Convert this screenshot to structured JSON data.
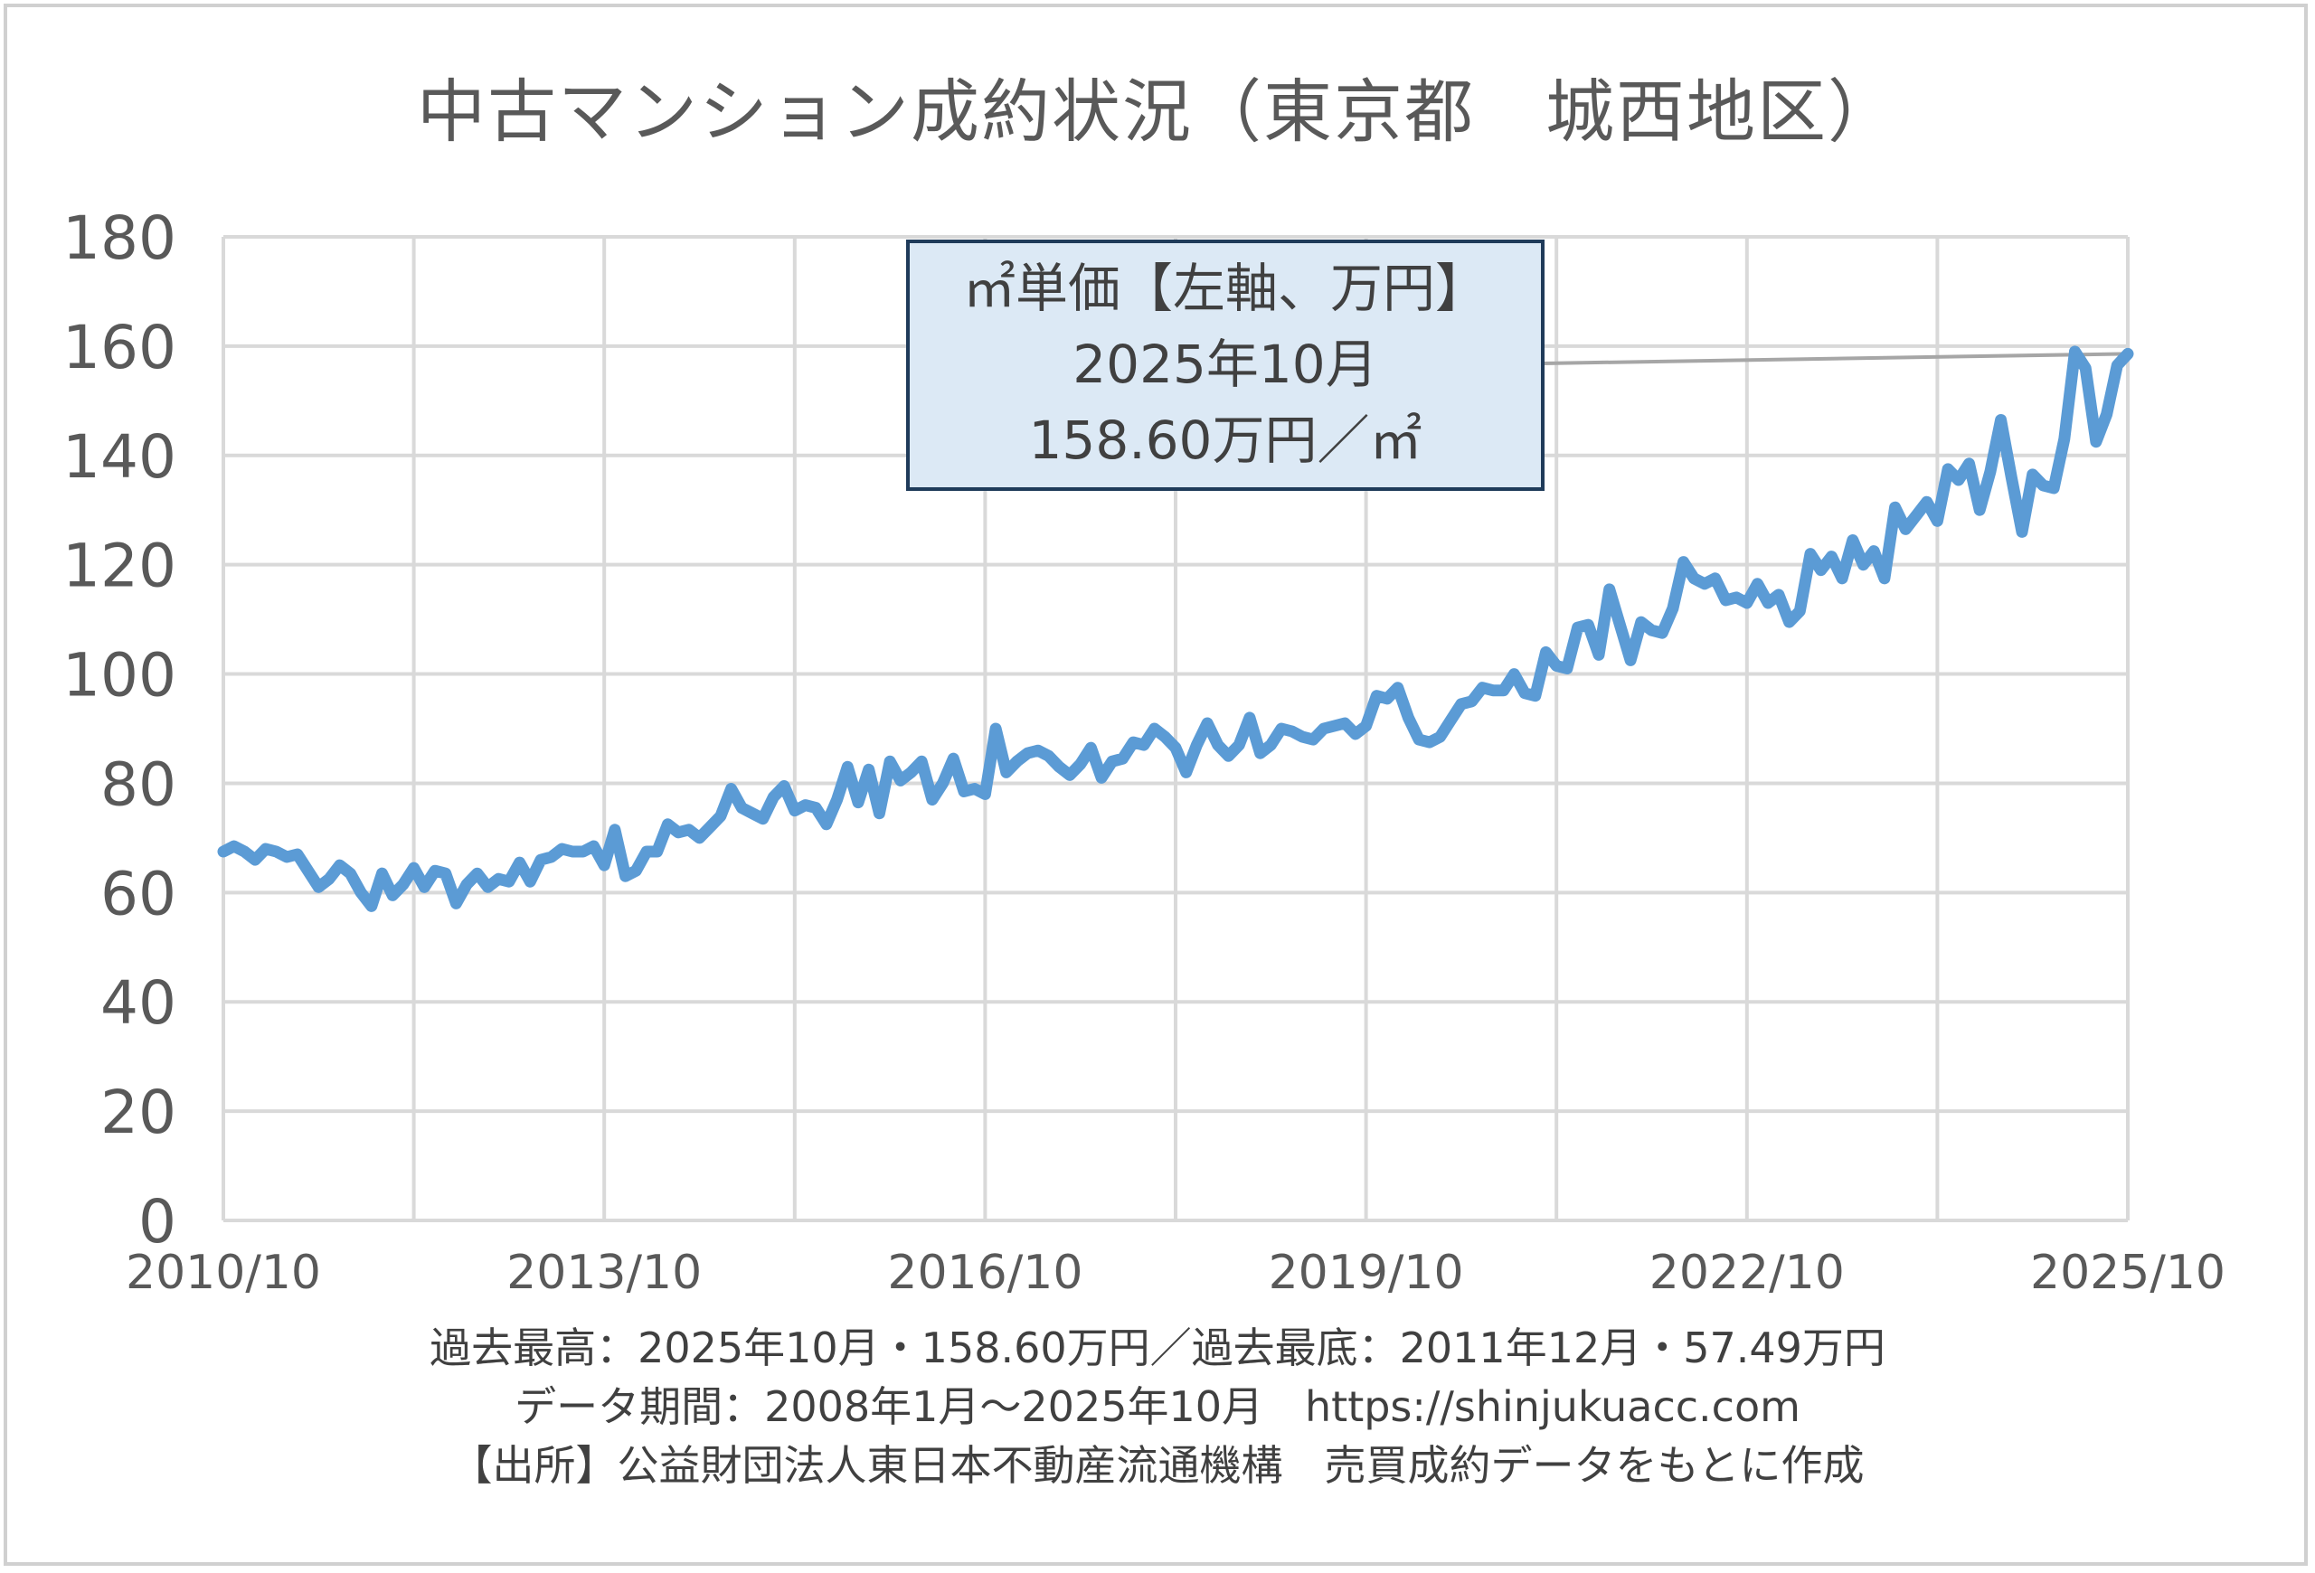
{
  "chart_title": "中古マンション成約状況（東京都　城西地区）",
  "chart_data": {
    "type": "line",
    "title": "中古マンション成約状況（東京都　城西地区）",
    "ylim": [
      0,
      180
    ],
    "yticks": [
      "0",
      "20",
      "40",
      "60",
      "80",
      "100",
      "120",
      "140",
      "160",
      "180"
    ],
    "xlabels": [
      "2010/10",
      "2013/10",
      "2016/10",
      "2019/10",
      "2022/10",
      "2025/10"
    ],
    "x_start": "2010/10",
    "x_end": "2025/10",
    "grid": true,
    "series": [
      {
        "color": "#5b9bd5",
        "values": [
          67.5,
          68.5,
          67.5,
          66.0,
          68.0,
          67.5,
          66.5,
          67.0,
          64.0,
          61.0,
          62.5,
          65.0,
          63.5,
          60.0,
          57.5,
          63.5,
          59.5,
          61.5,
          64.5,
          61.0,
          64.0,
          63.5,
          58.0,
          61.5,
          63.5,
          61.0,
          62.5,
          62.0,
          65.5,
          62.0,
          66.0,
          66.5,
          68.0,
          67.5,
          67.5,
          68.5,
          65.0,
          71.5,
          63.0,
          64.0,
          67.5,
          67.5,
          72.5,
          71.0,
          71.5,
          70.0,
          72.0,
          74.0,
          79.0,
          75.5,
          74.5,
          73.5,
          77.5,
          79.5,
          75.0,
          76.0,
          75.5,
          72.5,
          77.0,
          83.0,
          76.5,
          82.5,
          74.5,
          84.0,
          80.5,
          82.0,
          84.0,
          77.0,
          80.0,
          84.5,
          78.5,
          79.0,
          78.0,
          90.0,
          82.0,
          84.0,
          85.5,
          86.0,
          85.0,
          83.0,
          81.5,
          83.5,
          86.5,
          81.0,
          84.0,
          84.5,
          87.5,
          87.0,
          90.0,
          88.5,
          86.5,
          82.0,
          87.0,
          91.0,
          87.0,
          85.0,
          87.0,
          92.0,
          85.5,
          87.0,
          90.0,
          89.5,
          88.5,
          88.0,
          90.0,
          90.5,
          91.0,
          89.0,
          90.5,
          96.0,
          95.5,
          97.5,
          92.0,
          88.0,
          87.5,
          88.5,
          91.5,
          94.5,
          95.0,
          97.5,
          97.0,
          97.0,
          100.0,
          96.5,
          96.0,
          104.0,
          101.5,
          101.0,
          108.5,
          109.0,
          103.5,
          115.5,
          109.0,
          102.5,
          109.5,
          108.0,
          107.5,
          112.0,
          120.5,
          117.5,
          116.5,
          117.5,
          113.5,
          114.0,
          113.0,
          116.5,
          113.0,
          114.5,
          109.5,
          111.5,
          122.0,
          119.0,
          121.5,
          117.5,
          124.5,
          120.0,
          122.5,
          117.5,
          130.5,
          126.5,
          129.0,
          131.5,
          128.0,
          137.5,
          135.5,
          138.5,
          130.0,
          137.0,
          146.5,
          136.0,
          126.0,
          136.5,
          134.5,
          134.0,
          143.0,
          159.0,
          156.0,
          142.5,
          147.5,
          156.5,
          158.6
        ]
      }
    ]
  },
  "callout": {
    "line1": "㎡単価【左軸、万円】",
    "line2": "2025年10月",
    "line3": "158.60万円／㎡"
  },
  "footer": {
    "line1": "過去最高：2025年10月・158.60万円／過去最底：2011年12月・57.49万円",
    "line2": "データ期間：2008年1月～2025年10月　https://shinjukuacc.com",
    "line3": "【出所】公益財団法人東日本不動産流通機構　売買成約データをもとに作成"
  }
}
